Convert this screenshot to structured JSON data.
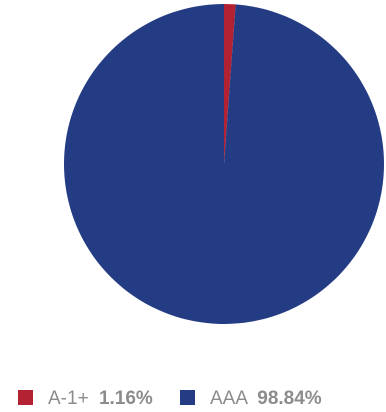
{
  "chart_data": {
    "type": "pie",
    "title": "",
    "slices": [
      {
        "label": "A-1+",
        "value": 1.16,
        "value_text": "1.16%",
        "color": "#b22232"
      },
      {
        "label": "AAA",
        "value": 98.84,
        "value_text": "98.84%",
        "color": "#243c84"
      }
    ],
    "legend": {
      "placement": "bottom",
      "items": [
        {
          "label": "A-1+",
          "value_text": "1.16%",
          "color": "#b22232"
        },
        {
          "label": "AAA",
          "value_text": "98.84%",
          "color": "#243c84"
        }
      ]
    }
  }
}
